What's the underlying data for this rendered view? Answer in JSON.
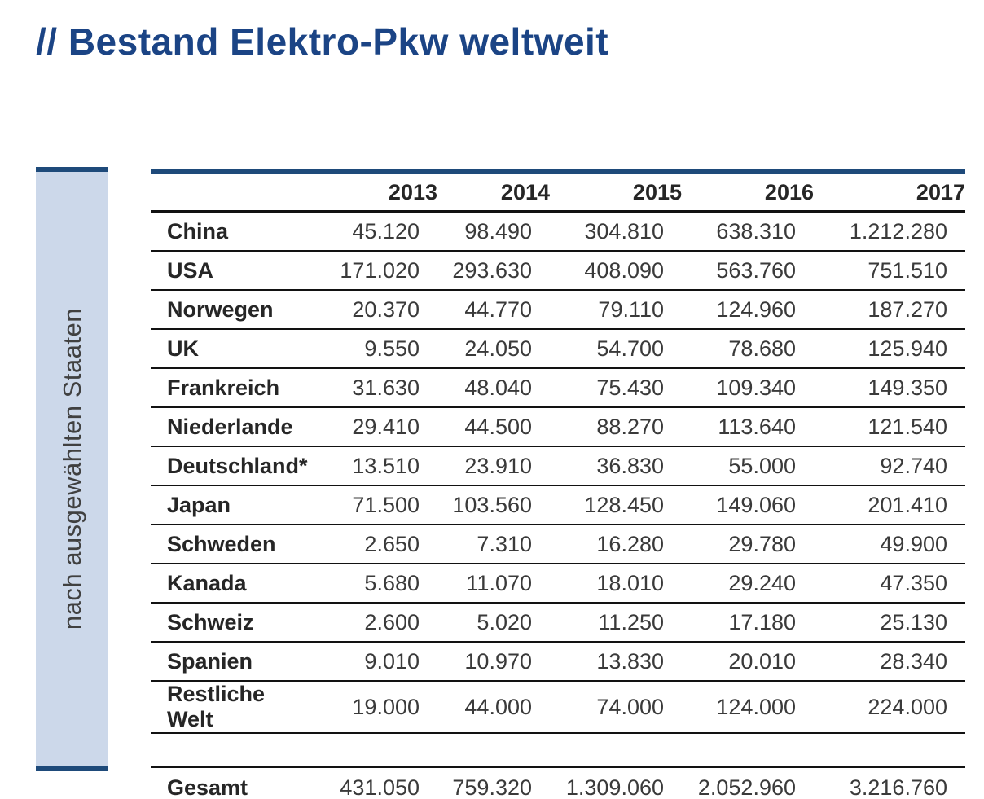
{
  "title": "// Bestand Elektro-Pkw weltweit",
  "sidebar": {
    "label": "nach ausgewählten Staaten"
  },
  "colors": {
    "title_blue": "#1b4485",
    "accent_bar_blue": "#1e4a7a",
    "sidebar_fill": "#ccd8ea",
    "rule_black": "#121212"
  },
  "table": {
    "years": [
      "2013",
      "2014",
      "2015",
      "2016",
      "2017"
    ],
    "rows": [
      {
        "label": "China",
        "values": [
          "45.120",
          "98.490",
          "304.810",
          "638.310",
          "1.212.280"
        ]
      },
      {
        "label": "USA",
        "values": [
          "171.020",
          "293.630",
          "408.090",
          "563.760",
          "751.510"
        ]
      },
      {
        "label": "Norwegen",
        "values": [
          "20.370",
          "44.770",
          "79.110",
          "124.960",
          "187.270"
        ]
      },
      {
        "label": "UK",
        "values": [
          "9.550",
          "24.050",
          "54.700",
          "78.680",
          "125.940"
        ]
      },
      {
        "label": "Frankreich",
        "values": [
          "31.630",
          "48.040",
          "75.430",
          "109.340",
          "149.350"
        ]
      },
      {
        "label": "Niederlande",
        "values": [
          "29.410",
          "44.500",
          "88.270",
          "113.640",
          "121.540"
        ]
      },
      {
        "label": "Deutschland*",
        "values": [
          "13.510",
          "23.910",
          "36.830",
          "55.000",
          "92.740"
        ]
      },
      {
        "label": "Japan",
        "values": [
          "71.500",
          "103.560",
          "128.450",
          "149.060",
          "201.410"
        ]
      },
      {
        "label": "Schweden",
        "values": [
          "2.650",
          "7.310",
          "16.280",
          "29.780",
          "49.900"
        ]
      },
      {
        "label": "Kanada",
        "values": [
          "5.680",
          "11.070",
          "18.010",
          "29.240",
          "47.350"
        ]
      },
      {
        "label": "Schweiz",
        "values": [
          "2.600",
          "5.020",
          "11.250",
          "17.180",
          "25.130"
        ]
      },
      {
        "label": "Spanien",
        "values": [
          "9.010",
          "10.970",
          "13.830",
          "20.010",
          "28.340"
        ]
      },
      {
        "label": "Restliche Welt",
        "values": [
          "19.000",
          "44.000",
          "74.000",
          "124.000",
          "224.000"
        ]
      }
    ],
    "total": {
      "label": "Gesamt",
      "values": [
        "431.050",
        "759.320",
        "1.309.060",
        "2.052.960",
        "3.216.760"
      ]
    }
  }
}
